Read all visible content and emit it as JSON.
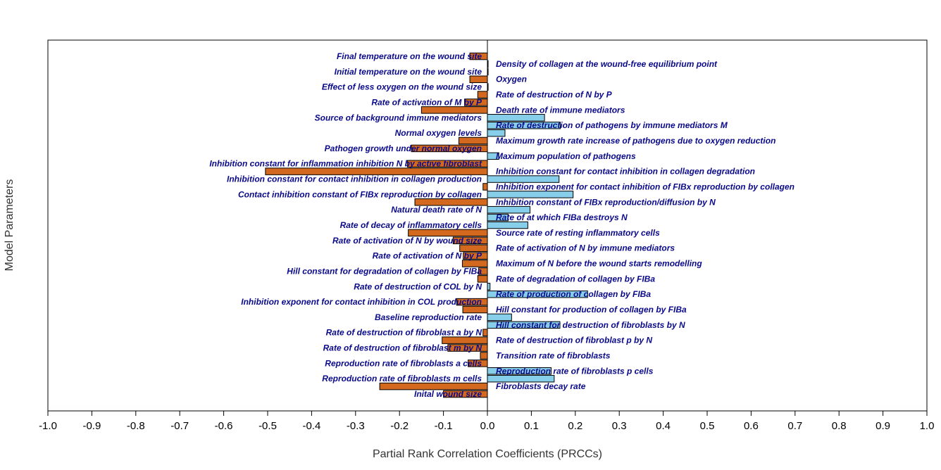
{
  "chart_data": {
    "type": "bar",
    "orientation": "horizontal",
    "title": "",
    "xlabel": "Partial Rank Correlation Coefficients (PRCCs)",
    "ylabel": "Model Parameters",
    "xlim": [
      -1.0,
      1.0
    ],
    "x_ticks": [
      "-1.0",
      "-0.9",
      "-0.8",
      "-0.7",
      "-0.6",
      "-0.5",
      "-0.4",
      "-0.3",
      "-0.2",
      "-0.1",
      "0.0",
      "0.1",
      "0.2",
      "0.3",
      "0.4",
      "0.5",
      "0.6",
      "0.7",
      "0.8",
      "0.9",
      "1.0"
    ],
    "positive_color": "#87ceeb",
    "negative_color": "#d2691e",
    "label_color": "#0a0a8a",
    "parameters": [
      {
        "label": "Final temperature on the wound site",
        "value": -0.04
      },
      {
        "label": "Density of collagen at the wound-free equilibrium point",
        "value": 0.001
      },
      {
        "label": "Initial temperature on the wound site",
        "value": 0.0005
      },
      {
        "label": "Oxygen",
        "value": -0.04
      },
      {
        "label": "Effect of less oxygen on the wound size",
        "value": 0.0005
      },
      {
        "label": "Rate of destruction of N by P",
        "value": -0.022
      },
      {
        "label": "Rate of activation of M by P",
        "value": -0.052
      },
      {
        "label": "Death rate of immune mediators",
        "value": -0.15
      },
      {
        "label": "Source of background immune mediators",
        "value": 0.13
      },
      {
        "label": "Rate of destruction of pathogens by immune mediators M",
        "value": 0.166
      },
      {
        "label": "Normal oxygen levels",
        "value": 0.04
      },
      {
        "label": "Maximum growth rate increase of pathogens due to oxygen reduction",
        "value": -0.065
      },
      {
        "label": "Pathogen growth under normal oxygen",
        "value": -0.173
      },
      {
        "label": "Maximum population of pathogens",
        "value": 0.026
      },
      {
        "label": "Inhibition constant for inflammation inhibition N by active fibroblast",
        "value": -0.182
      },
      {
        "label": "Inhibition constant for contact inhibition in collagen degradation",
        "value": -0.505
      },
      {
        "label": "Inhibition constant for contact inhibition in collagen production",
        "value": 0.163
      },
      {
        "label": "Inhibition exponent for contact inhibition of FIBx reproduction by collagen",
        "value": -0.01
      },
      {
        "label": "Contact inhibition constant of FIBx reproduction by collagen",
        "value": 0.195
      },
      {
        "label": "Inhibition constant of FIBx reproduction/diffusion by N",
        "value": -0.165
      },
      {
        "label": "Natural death rate of N",
        "value": 0.097
      },
      {
        "label": "Rate of at which FIBa destroys N",
        "value": 0.047
      },
      {
        "label": "Rate of decay of inflammatory cells",
        "value": 0.092
      },
      {
        "label": "Source rate of resting inflammatory cells",
        "value": -0.18
      },
      {
        "label": "Rate of activation of N by wound size",
        "value": -0.078
      },
      {
        "label": "Rate of activation of N by immune mediators",
        "value": -0.063
      },
      {
        "label": "Rate of activation of N by P",
        "value": -0.055
      },
      {
        "label": "Maximum of N before the wound starts remodelling",
        "value": -0.057
      },
      {
        "label": "Hill constant for degradation of collagen by FIBa",
        "value": -0.02
      },
      {
        "label": "Rate of degradation of collagen by FIBa",
        "value": -0.022
      },
      {
        "label": "Rate of destruction of COL by N",
        "value": 0.006
      },
      {
        "label": "Rate of production of collagen by FIBa",
        "value": 0.228
      },
      {
        "label": "Inhibition exponent for contact inhibition in COL production",
        "value": -0.07
      },
      {
        "label": "Hill constant for production of collagen by FIBa",
        "value": -0.056
      },
      {
        "label": "Baseline reproduction rate",
        "value": 0.055
      },
      {
        "label": "Hill constant for destruction of fibroblasts by N",
        "value": 0.165
      },
      {
        "label": "Rate of destruction of fibroblast a by N",
        "value": -0.01
      },
      {
        "label": "Rate of destruction of fibroblast p by N",
        "value": -0.103
      },
      {
        "label": "Rate of destruction of fibroblast m by N",
        "value": -0.09
      },
      {
        "label": "Transition rate of fibroblasts",
        "value": -0.016
      },
      {
        "label": "Reproduction rate of fibroblasts a cells",
        "value": -0.044
      },
      {
        "label": "Reproduction rate of fibroblasts p cells",
        "value": 0.145
      },
      {
        "label": "Reproduction rate of fibroblasts m cells",
        "value": 0.152
      },
      {
        "label": "Fibroblasts decay rate",
        "value": -0.245
      },
      {
        "label": "Inital wound size",
        "value": -0.1
      }
    ]
  }
}
